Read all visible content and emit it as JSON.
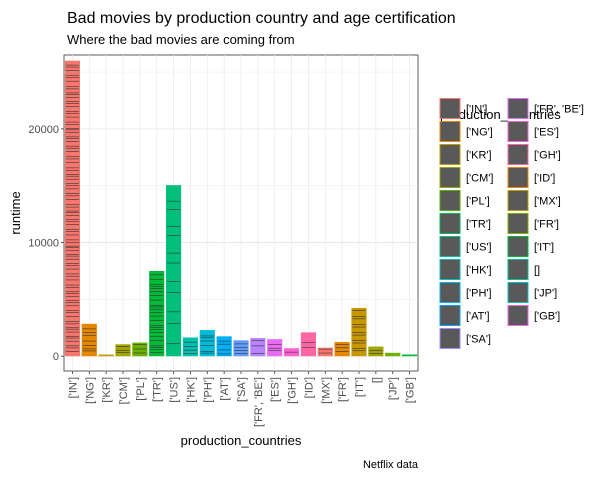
{
  "chart_data": {
    "type": "bar",
    "title": "Bad movies by production country and age certification",
    "subtitle": "Where the bad movies are coming from",
    "caption": "Netflix data",
    "xlabel": "production_countries",
    "ylabel": "runtime",
    "ylim": [
      -1300,
      26500
    ],
    "y_ticks": [
      0,
      10000,
      20000
    ],
    "grid": true,
    "legend_position": "right",
    "legend_title": "production_countries",
    "categories": [
      "['IN']",
      "['NG']",
      "['KR']",
      "['CM']",
      "['PL']",
      "['TR']",
      "['US']",
      "['HK']",
      "['PH']",
      "['AT']",
      "['SA']",
      "['FR', 'BE']",
      "['ES']",
      "['GH']",
      "['ID']",
      "['MX']",
      "['FR']",
      "['IT']",
      "[]",
      "['JP']",
      "['GB']"
    ],
    "values": [
      26000,
      2850,
      150,
      1050,
      1200,
      7500,
      15050,
      1650,
      2300,
      1750,
      1400,
      1600,
      1500,
      700,
      2100,
      750,
      1250,
      4250,
      850,
      300,
      150
    ],
    "colors": [
      "#F8766D",
      "#E58700",
      "#C99800",
      "#A3A500",
      "#6BB100",
      "#00BA38",
      "#00BF7D",
      "#00C0AF",
      "#00BCD8",
      "#00B0F6",
      "#619CFF",
      "#B983FF",
      "#E76BF3",
      "#FD61D1",
      "#FF67A4",
      "#F8766D",
      "#E58700",
      "#C99800",
      "#A3A500",
      "#6BB100",
      "#00BA38"
    ],
    "legend_colors": [
      "#F8766D",
      "#DE8C00",
      "#C49A00",
      "#99A800",
      "#53B400",
      "#00BC56",
      "#00C094",
      "#00BFC4",
      "#00B6EB",
      "#06A4FF",
      "#A58AFF",
      "#DF70F8",
      "#FB61D7",
      "#FF66A8",
      "#E58700",
      "#B79F00",
      "#7CAE00",
      "#00BA38",
      "#00C08B",
      "#00BFC4",
      "#F564E3"
    ],
    "legend_entries": [
      "['IN']",
      "['NG']",
      "['KR']",
      "['CM']",
      "['PL']",
      "['TR']",
      "['US']",
      "['HK']",
      "['PH']",
      "['AT']",
      "['SA']",
      "['FR', 'BE']",
      "['ES']",
      "['GH']",
      "['ID']",
      "['MX']",
      "['FR']",
      "['IT']",
      "[]",
      "['JP']",
      "['GB']"
    ],
    "stack_segments": [
      90,
      8,
      1,
      4,
      4,
      25,
      12,
      5,
      7,
      5,
      5,
      4,
      4,
      2,
      3,
      3,
      4,
      12,
      3,
      1,
      1
    ]
  }
}
